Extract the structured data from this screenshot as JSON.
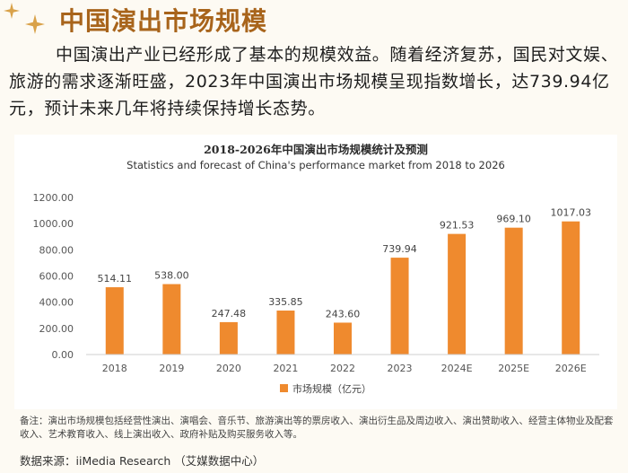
{
  "heading": "中国演出市场规模",
  "paragraph": "中国演出产业已经形成了基本的规模效益。随着经济复苏，国民对文娱、旅游的需求逐渐旺盛，2023年中国演出市场规模呈现指数增长，达739.94亿元，预计未来几年将持续保持增长态势。",
  "colors": {
    "accent": "#a8641b",
    "bar": "#ef8a2e",
    "sparkle": "#d9a24a"
  },
  "icons": [
    "sparkle-icon",
    "sparkle-icon"
  ],
  "chart_data": {
    "type": "bar",
    "title": "2018-2026年中国演出市场规模统计及预测",
    "subtitle": "Statistics and forecast of China's performance market from 2018 to 2026",
    "categories": [
      "2018",
      "2019",
      "2020",
      "2021",
      "2022",
      "2023",
      "2024E",
      "2025E",
      "2026E"
    ],
    "series": [
      {
        "name": "市场规模（亿元）",
        "values": [
          514.11,
          538.0,
          247.48,
          335.85,
          243.6,
          739.94,
          921.53,
          969.1,
          1017.03
        ]
      }
    ],
    "data_labels": [
      "514.11",
      "538.00",
      "247.48",
      "335.85",
      "243.60",
      "739.94",
      "921.53",
      "969.10",
      "1017.03"
    ],
    "y_ticks": [
      "0.00",
      "200.00",
      "400.00",
      "600.00",
      "800.00",
      "1000.00",
      "1200.00"
    ],
    "ylim": [
      0,
      1200
    ],
    "grid": false,
    "legend_position": "bottom"
  },
  "notes": "备注：演出市场规模包括经营性演出、演唱会、音乐节、旅游演出等的票房收入、演出衍生品及周边收入、演出赞助收入、经营主体物业及配套收入、艺术教育收入、线上演出收入、政府补贴及购买服务收入等。",
  "source": "数据来源：iiMedia Research （艾媒数据中心）"
}
